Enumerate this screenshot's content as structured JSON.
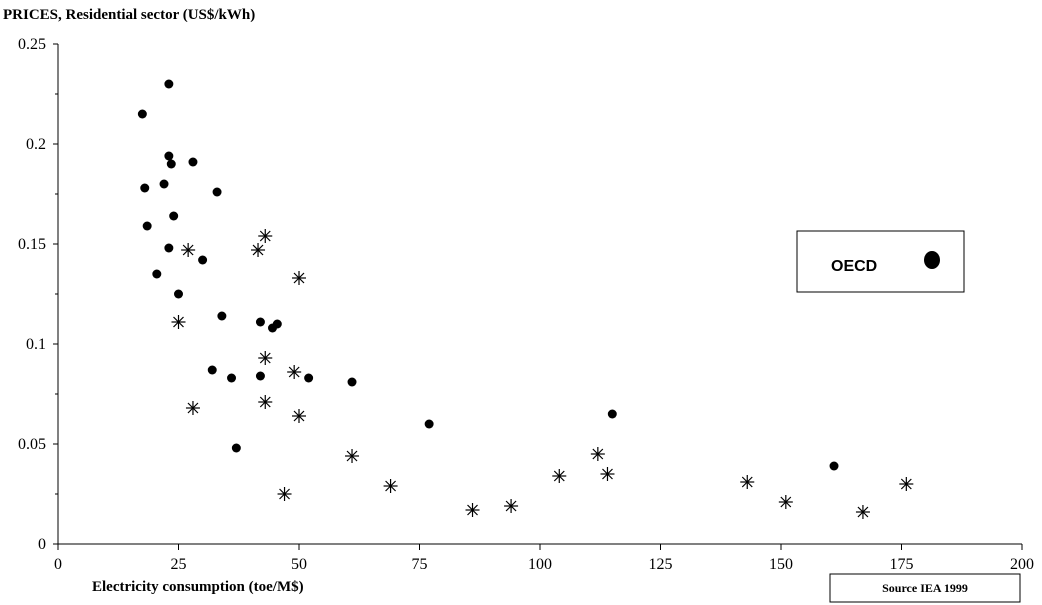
{
  "chart_data": {
    "type": "scatter",
    "title": "PRICES, Residential sector (US$/kWh)",
    "xlabel": "Electricity consumption (toe/M$)",
    "ylabel": "",
    "xlim": [
      0,
      200
    ],
    "ylim": [
      0,
      0.25
    ],
    "x_ticks": [
      "0",
      "25",
      "50",
      "75",
      "100",
      "125",
      "150",
      "175",
      "200"
    ],
    "y_ticks": [
      "0",
      "0.05",
      "0.1",
      "0.15",
      "0.2",
      "0.25"
    ],
    "grid": false,
    "legend": {
      "placement": "right",
      "entries": [
        {
          "label": "OECD",
          "marker": "dot"
        }
      ]
    },
    "source": "Source IEA 1999",
    "series": [
      {
        "name": "OECD",
        "marker": "dot",
        "color": "#000000",
        "points": [
          [
            23,
            0.23
          ],
          [
            17.5,
            0.215
          ],
          [
            23,
            0.194
          ],
          [
            23.5,
            0.19
          ],
          [
            28,
            0.191
          ],
          [
            22,
            0.18
          ],
          [
            18,
            0.178
          ],
          [
            33,
            0.176
          ],
          [
            24,
            0.164
          ],
          [
            18.5,
            0.159
          ],
          [
            23,
            0.148
          ],
          [
            30,
            0.142
          ],
          [
            20.5,
            0.135
          ],
          [
            25,
            0.125
          ],
          [
            34,
            0.114
          ],
          [
            42,
            0.111
          ],
          [
            44.5,
            0.108
          ],
          [
            45.5,
            0.11
          ],
          [
            32,
            0.087
          ],
          [
            36,
            0.083
          ],
          [
            42,
            0.084
          ],
          [
            52,
            0.083
          ],
          [
            61,
            0.081
          ],
          [
            37,
            0.048
          ],
          [
            77,
            0.06
          ],
          [
            115,
            0.065
          ],
          [
            161,
            0.039
          ]
        ]
      },
      {
        "name": "",
        "marker": "asterisk",
        "color": "#000000",
        "points": [
          [
            27,
            0.147
          ],
          [
            41.5,
            0.147
          ],
          [
            43,
            0.154
          ],
          [
            50,
            0.133
          ],
          [
            25,
            0.111
          ],
          [
            43,
            0.093
          ],
          [
            49,
            0.086
          ],
          [
            28,
            0.068
          ],
          [
            43,
            0.071
          ],
          [
            50,
            0.064
          ],
          [
            61,
            0.044
          ],
          [
            47,
            0.025
          ],
          [
            69,
            0.029
          ],
          [
            86,
            0.017
          ],
          [
            94,
            0.019
          ],
          [
            104,
            0.034
          ],
          [
            112,
            0.045
          ],
          [
            114,
            0.035
          ],
          [
            143,
            0.031
          ],
          [
            151,
            0.021
          ],
          [
            167,
            0.016
          ],
          [
            176,
            0.03
          ]
        ]
      }
    ]
  }
}
